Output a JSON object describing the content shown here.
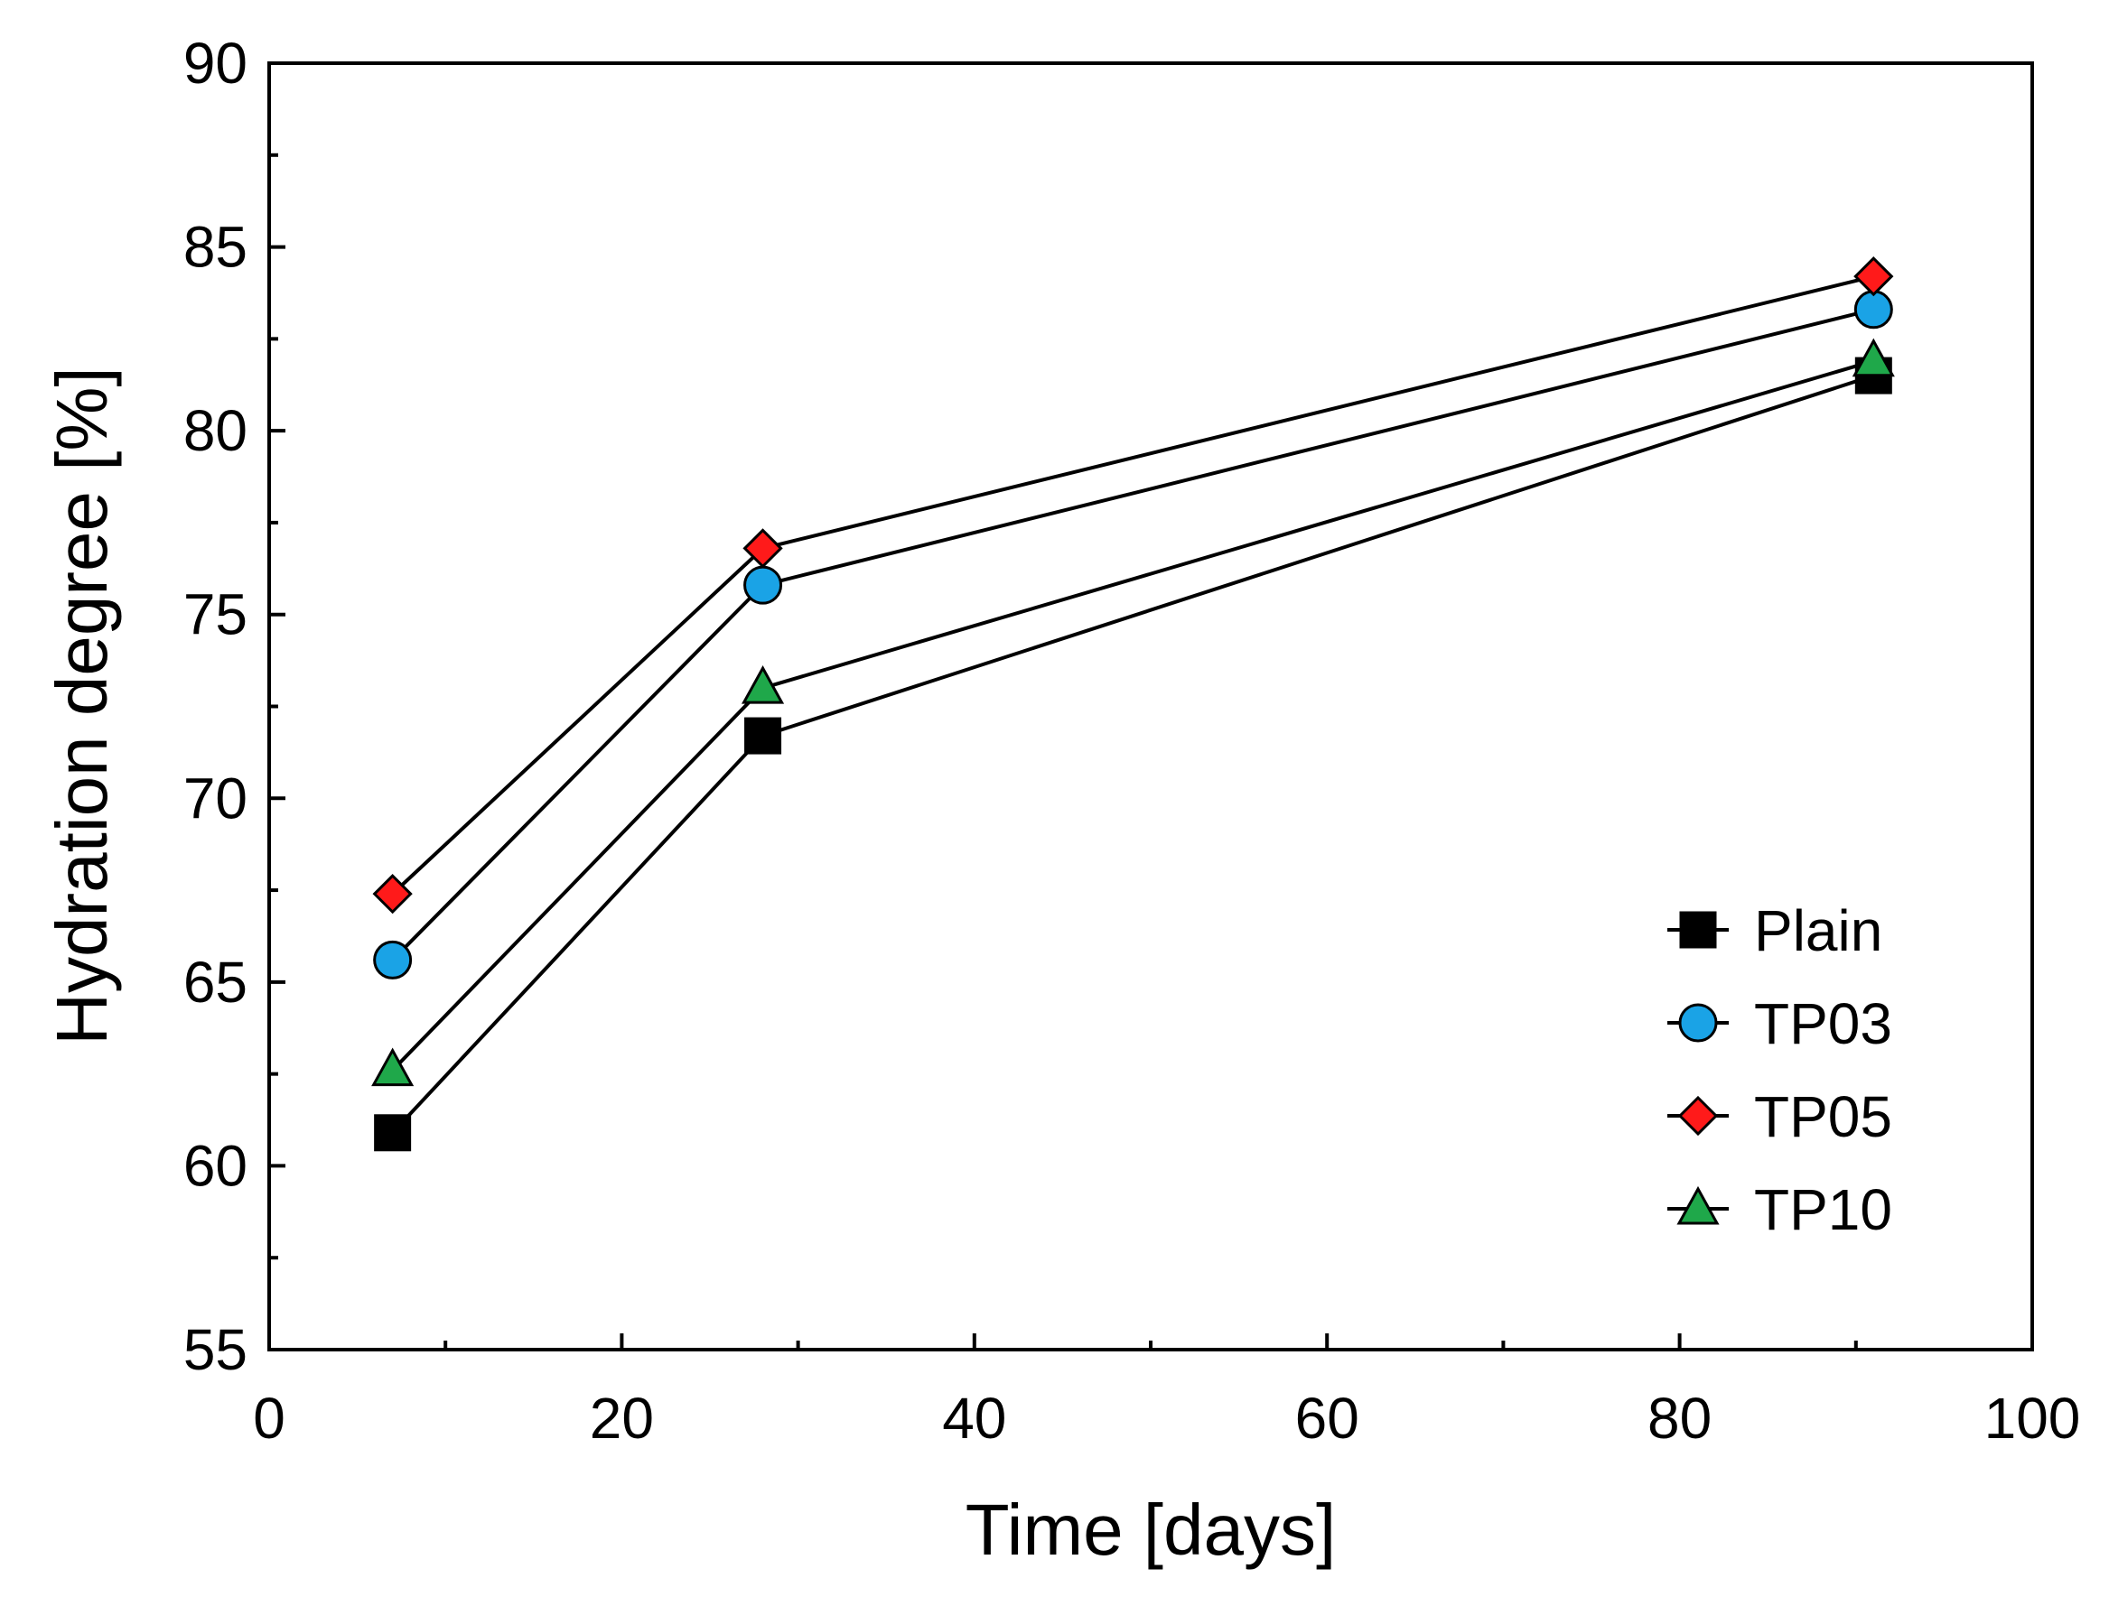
{
  "chart_data": {
    "type": "line",
    "title": "",
    "xlabel": "Time [days]",
    "ylabel": "Hydration degree [%]",
    "xlim": [
      0,
      100
    ],
    "ylim": [
      55,
      90
    ],
    "xticks": [
      0,
      20,
      40,
      60,
      80,
      100
    ],
    "xtick_labels": [
      "0",
      "20",
      "40",
      "60",
      "80",
      "100"
    ],
    "yticks": [
      55,
      60,
      65,
      70,
      75,
      80,
      85,
      90
    ],
    "ytick_labels": [
      "55",
      "60",
      "65",
      "70",
      "75",
      "80",
      "85",
      "90"
    ],
    "grid": false,
    "legend_position": "bottom-right",
    "x": [
      7,
      28,
      91
    ],
    "series": [
      {
        "name": "Plain",
        "marker": "square",
        "color": "#000000",
        "values": [
          60.9,
          71.7,
          81.5
        ]
      },
      {
        "name": "TP03",
        "marker": "circle",
        "color": "#1aa3e6",
        "values": [
          65.6,
          75.8,
          83.3
        ]
      },
      {
        "name": "TP05",
        "marker": "diamond",
        "color": "#ff1a1a",
        "values": [
          67.4,
          76.8,
          84.2
        ]
      },
      {
        "name": "TP10",
        "marker": "triangle",
        "color": "#1fa84a",
        "values": [
          62.6,
          73.0,
          81.9
        ]
      }
    ]
  }
}
